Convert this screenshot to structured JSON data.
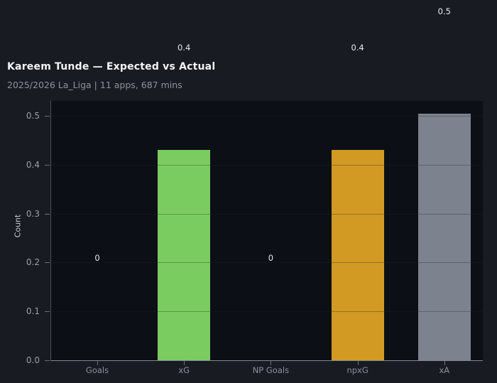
{
  "chart_data": {
    "type": "bar",
    "title": "Kareem Tunde — Expected vs Actual",
    "subtitle": "2025/2026 La_Liga | 11 apps, 687 mins",
    "ylabel": "Count",
    "xlabel": "",
    "categories": [
      "Goals",
      "xG",
      "NP Goals",
      "npxG",
      "xA"
    ],
    "values": [
      0,
      0.43,
      0,
      0.43,
      0.504
    ],
    "bar_labels": [
      "0",
      "0.4",
      "0",
      "0.4",
      "0.5"
    ],
    "bar_colors": [
      null,
      "#7bcc60",
      null,
      "#d29a23",
      "#7d838e"
    ],
    "yticks": [
      0.0,
      0.1,
      0.2,
      0.3,
      0.4,
      0.5
    ],
    "ytick_labels": [
      "0.0",
      "0.1",
      "0.2",
      "0.3",
      "0.4",
      "0.5"
    ],
    "ylim": [
      0,
      0.53
    ],
    "grid": "horizontal gridlines drawn over bars",
    "legend": "none",
    "value_label_offset": 0.21
  },
  "colors": {
    "figure_bg": "#181b22",
    "plot_bg": "#0c0f15",
    "grid": "rgba(35,40,50,0.35)",
    "axis_left_spine": "#4b5057",
    "axis_bottom_spine": "#82878f",
    "tick_mark": "#6a6f77",
    "title_text": "#f2f4f6",
    "subtitle_text": "#8d939c",
    "ytick_text": "#9aa0a8",
    "xtick_text": "#8b9199",
    "value_label_text": "#e9ebee",
    "ylabel_text": "#c9ced4",
    "bar_green": "#7bcc60",
    "bar_gold": "#d29a23",
    "bar_gray": "#7d838e"
  }
}
